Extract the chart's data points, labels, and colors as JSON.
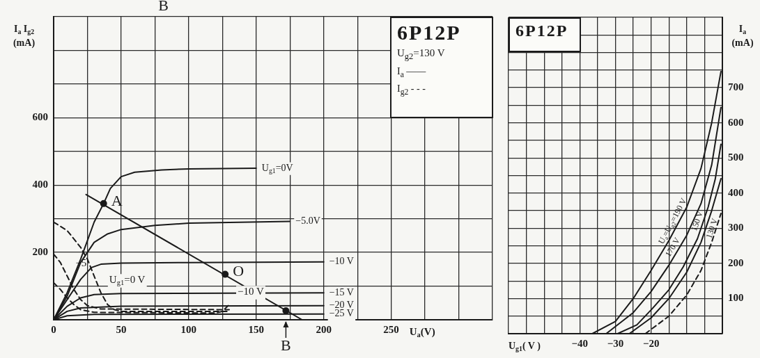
{
  "chart_data": [
    {
      "type": "line",
      "title": "6P12P",
      "subtitle": "U$_{g2}$=130 V",
      "xlabel": "U$_{a}$(V)",
      "ylabel": "I$_{a}$ I$_{g2}$ (mA)",
      "annotations": [
        "I$_{a}$ ——",
        "I$_{g2}$ - - -",
        "B",
        {
          "text": "A",
          "x": 37,
          "y": 345
        },
        {
          "text": "O",
          "x": 127,
          "y": 135
        },
        {
          "text": "B",
          "x": 172,
          "y": 27
        },
        {
          "text": "U$_{g1}$=0 V",
          "x": 35,
          "y": 80
        },
        {
          "text": "−5",
          "x": 10,
          "y": 130
        },
        {
          "text": "−10 V",
          "x": 130,
          "y": 45
        }
      ],
      "xlim": [
        0,
        325
      ],
      "ylim": [
        0,
        900
      ],
      "xticks": [
        0,
        {
          "value": 25,
          "label": null
        },
        50,
        {
          "value": 75,
          "label": null
        },
        100,
        {
          "value": 125,
          "label": null
        },
        150,
        {
          "value": 175,
          "label": null
        },
        200,
        {
          "value": 225,
          "label": null
        },
        250,
        {
          "value": 275,
          "label": null
        },
        {
          "value": 300,
          "label": null
        },
        {
          "value": 325,
          "label": null
        }
      ],
      "yticks": [
        {
          "value": 0,
          "label": null
        },
        {
          "value": 100,
          "label": null
        },
        200,
        {
          "value": 300,
          "label": null
        },
        400,
        {
          "value": 500,
          "label": null
        },
        600,
        {
          "value": 700,
          "label": null
        },
        {
          "value": 800,
          "label": null
        },
        {
          "value": 900,
          "label": null
        }
      ],
      "grid": true,
      "series": [
        {
          "name": "U$_{g1}$=0V",
          "color": "#1a1a1a",
          "x": [
            0,
            10,
            20,
            30,
            37,
            42,
            50,
            60,
            80,
            100,
            150
          ],
          "values": [
            0,
            80,
            180,
            290,
            345,
            390,
            425,
            438,
            445,
            448,
            450
          ]
        },
        {
          "name": "−5.0V",
          "color": "#1a1a1a",
          "x": [
            0,
            10,
            20,
            30,
            40,
            50,
            75,
            100,
            175
          ],
          "values": [
            0,
            70,
            170,
            230,
            255,
            268,
            280,
            287,
            292
          ]
        },
        {
          "name": "−10 V",
          "color": "#1a1a1a",
          "x": [
            0,
            10,
            20,
            28,
            35,
            50,
            100,
            200
          ],
          "values": [
            0,
            60,
            120,
            155,
            165,
            168,
            170,
            172
          ]
        },
        {
          "name": "−15 V",
          "color": "#1a1a1a",
          "x": [
            0,
            10,
            20,
            30,
            50,
            200
          ],
          "values": [
            0,
            40,
            65,
            75,
            78,
            80
          ]
        },
        {
          "name": "−20 V",
          "color": "#1a1a1a",
          "x": [
            0,
            10,
            20,
            50,
            200
          ],
          "values": [
            0,
            25,
            35,
            40,
            42
          ]
        },
        {
          "name": "−25 V",
          "color": "#1a1a1a",
          "x": [
            0,
            10,
            30,
            200
          ],
          "values": [
            0,
            12,
            16,
            17
          ]
        },
        {
          "color": "#1a1a1a",
          "line_style": "dashed",
          "x": [
            0,
            10,
            20,
            25,
            30,
            35,
            40,
            45,
            50,
            130
          ],
          "values": [
            290,
            265,
            215,
            180,
            130,
            80,
            45,
            30,
            25,
            25
          ]
        },
        {
          "color": "#1a1a1a",
          "line_style": "dashed",
          "x": [
            0,
            5,
            10,
            15,
            20,
            25,
            35,
            130
          ],
          "values": [
            195,
            170,
            130,
            90,
            60,
            42,
            32,
            30
          ]
        },
        {
          "color": "#1a1a1a",
          "line_style": "dashed",
          "x": [
            0,
            5,
            10,
            15,
            20,
            30,
            120,
            125,
            130
          ],
          "values": [
            110,
            90,
            65,
            45,
            30,
            22,
            20,
            25,
            45
          ]
        },
        {
          "color": "#1a1a1a",
          "x": [
            24,
            184
          ],
          "values": [
            372,
            0
          ]
        },
        {
          "type": "scatter",
          "marker": "circle",
          "color": "#1a1a1a",
          "x": [
            37,
            127,
            172
          ],
          "values": [
            345,
            135,
            27
          ]
        }
      ]
    },
    {
      "type": "line",
      "title": "6P12P",
      "xlabel": "U$_{g1}$( V )",
      "ylabel": "I$_{a}$ (mA)",
      "xlim": [
        -60,
        0
      ],
      "ylim": [
        0,
        900
      ],
      "xticks": [
        {
          "value": -60,
          "label": null
        },
        {
          "value": -55,
          "label": null
        },
        {
          "value": -50,
          "label": null
        },
        {
          "value": -45,
          "label": null
        },
        -40,
        {
          "value": -35,
          "label": null
        },
        -30,
        {
          "value": -25,
          "label": null
        },
        -20,
        {
          "value": -15,
          "label": null
        },
        {
          "value": -10,
          "label": null
        },
        {
          "value": -5,
          "label": null
        },
        {
          "value": 0,
          "label": null
        }
      ],
      "yticks": [
        {
          "value": 0,
          "label": null
        },
        {
          "value": 50,
          "label": null
        },
        100,
        {
          "value": 150,
          "label": null
        },
        200,
        {
          "value": 250,
          "label": null
        },
        300,
        {
          "value": 350,
          "label": null
        },
        400,
        {
          "value": 450,
          "label": null
        },
        500,
        {
          "value": 550,
          "label": null
        },
        600,
        {
          "value": 650,
          "label": null
        },
        700,
        {
          "value": 750,
          "label": null
        },
        {
          "value": 800,
          "label": null
        },
        {
          "value": 850,
          "label": null
        },
        {
          "value": 900,
          "label": null
        }
      ],
      "grid": true,
      "series": [
        {
          "name": "U$_{a}$=U$_{g2}$=190 V",
          "color": "#1a1a1a",
          "x": [
            -36.5,
            -30,
            -25,
            -20,
            -15,
            -10,
            -6,
            -3,
            -0.4
          ],
          "values": [
            0,
            35,
            100,
            180,
            265,
            360,
            470,
            600,
            746
          ]
        },
        {
          "name": "170 V",
          "color": "#1a1a1a",
          "x": [
            -32.6,
            -25,
            -20,
            -15,
            -10,
            -6,
            -3,
            -0.4
          ],
          "values": [
            0,
            60,
            120,
            195,
            280,
            370,
            480,
            644
          ]
        },
        {
          "name": "150 V",
          "color": "#1a1a1a",
          "x": [
            -29.4,
            -24,
            -19.6,
            -15,
            -11,
            -7,
            -4,
            -2,
            -0.4
          ],
          "values": [
            0,
            25,
            72,
            125,
            190,
            270,
            360,
            440,
            539
          ]
        },
        {
          "name": "130 V",
          "color": "#1a1a1a",
          "x": [
            -26.1,
            -20,
            -15,
            -10,
            -6,
            -3,
            -0.4
          ],
          "values": [
            0,
            45,
            100,
            175,
            260,
            350,
            441
          ]
        },
        {
          "color": "#1a1a1a",
          "line_style": "dashed",
          "x": [
            -21.6,
            -15,
            -10,
            -6,
            -3,
            -0.4
          ],
          "values": [
            0,
            50,
            110,
            180,
            260,
            342
          ]
        }
      ]
    }
  ]
}
